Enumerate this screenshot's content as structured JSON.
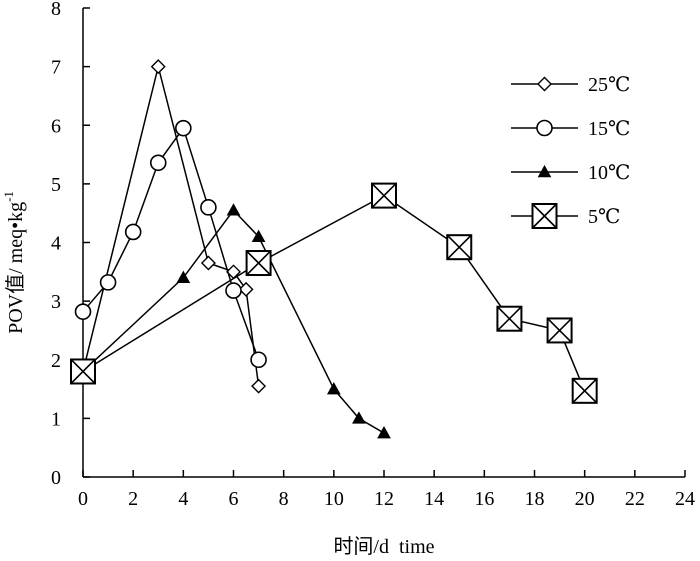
{
  "chart_data": {
    "type": "line",
    "title": "",
    "xlabel": "时间/d  time",
    "ylabel": "POV值/ meq•kg",
    "ylabel_superscript": "-1",
    "xlim": [
      0,
      24
    ],
    "ylim": [
      0,
      8
    ],
    "xticks": [
      0,
      2,
      4,
      6,
      8,
      10,
      12,
      14,
      16,
      18,
      20,
      22,
      24
    ],
    "yticks": [
      0,
      1,
      2,
      3,
      4,
      5,
      6,
      7,
      8
    ],
    "grid": false,
    "legend_position": "top-right",
    "series": [
      {
        "name": "25℃",
        "marker": "diamond-open",
        "x": [
          0,
          3,
          5,
          6,
          6.5,
          7
        ],
        "y": [
          1.8,
          7.0,
          3.65,
          3.5,
          3.2,
          1.55
        ]
      },
      {
        "name": "15℃",
        "marker": "circle-open",
        "x": [
          0,
          1,
          2,
          3,
          4,
          5,
          6,
          7
        ],
        "y": [
          2.82,
          3.32,
          4.18,
          5.36,
          5.95,
          4.6,
          3.18,
          2.0
        ]
      },
      {
        "name": "10℃",
        "marker": "triangle-filled",
        "x": [
          0,
          4,
          6,
          7,
          10,
          11,
          12
        ],
        "y": [
          1.8,
          3.4,
          4.55,
          4.1,
          1.5,
          1.0,
          0.75
        ]
      },
      {
        "name": "5℃",
        "marker": "boxed-x",
        "x": [
          0,
          7,
          12,
          15,
          17,
          19,
          20
        ],
        "y": [
          1.8,
          3.65,
          4.8,
          3.92,
          2.7,
          2.5,
          1.47
        ]
      }
    ]
  }
}
